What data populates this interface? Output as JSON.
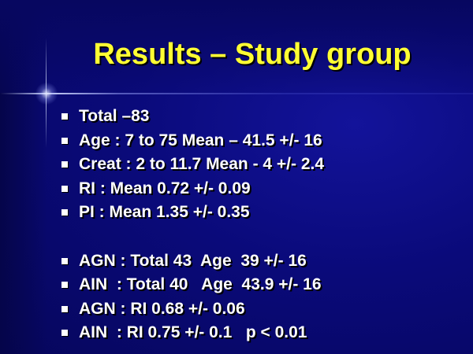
{
  "slide": {
    "title": "Results – Study group",
    "bullets": [
      "Total –83",
      "Age : 7 to 75 Mean – 41.5 +/- 16",
      "Creat : 2 to 11.7 Mean - 4 +/- 2.4",
      "RI : Mean 0.72 +/- 0.09",
      "PI : Mean 1.35 +/- 0.35",
      "AGN : Total 43  Age  39 +/- 16",
      "AIN  : Total 40   Age  43.9 +/- 16",
      "AGN : RI 0.68 +/- 0.06",
      "AIN  : RI 0.75 +/- 0.1   p < 0.01"
    ]
  },
  "colors": {
    "background": "#0a0a7a",
    "title": "#ffff33",
    "text": "#ffffff"
  }
}
